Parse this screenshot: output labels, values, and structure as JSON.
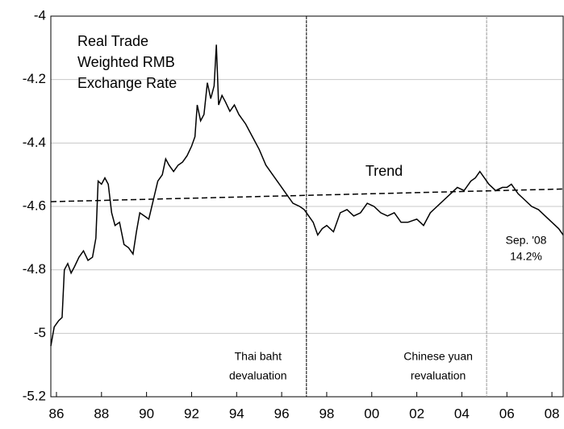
{
  "chart_data": {
    "type": "line",
    "title": [
      "Real Trade",
      "Weighted RMB",
      "Exchange Rate"
    ],
    "xlim": [
      1985.75,
      2008.5
    ],
    "ylim": [
      -5.2,
      -4.0
    ],
    "yticks": [
      -5.2,
      -5.0,
      -4.8,
      -4.6,
      -4.4,
      -4.2,
      -4.0
    ],
    "xticks": [
      {
        "value": 1986,
        "label": "86"
      },
      {
        "value": 1988,
        "label": "88"
      },
      {
        "value": 1990,
        "label": "90"
      },
      {
        "value": 1992,
        "label": "92"
      },
      {
        "value": 1994,
        "label": "94"
      },
      {
        "value": 1996,
        "label": "96"
      },
      {
        "value": 1998,
        "label": "98"
      },
      {
        "value": 2000,
        "label": "00"
      },
      {
        "value": 2002,
        "label": "02"
      },
      {
        "value": 2004,
        "label": "04"
      },
      {
        "value": 2006,
        "label": "06"
      },
      {
        "value": 2008,
        "label": "08"
      }
    ],
    "grid": true,
    "series": [
      {
        "color": "#000000",
        "x": [
          1985.75,
          1985.9,
          1986.1,
          1986.25,
          1986.35,
          1986.5,
          1986.65,
          1986.8,
          1987.0,
          1987.2,
          1987.4,
          1987.6,
          1987.75,
          1987.85,
          1988.0,
          1988.15,
          1988.3,
          1988.45,
          1988.6,
          1988.8,
          1989.0,
          1989.2,
          1989.4,
          1989.55,
          1989.7,
          1989.9,
          1990.1,
          1990.3,
          1990.5,
          1990.7,
          1990.85,
          1991.0,
          1991.2,
          1991.4,
          1991.6,
          1991.8,
          1992.0,
          1992.15,
          1992.25,
          1992.4,
          1992.55,
          1992.7,
          1992.85,
          1993.0,
          1993.1,
          1993.2,
          1993.35,
          1993.5,
          1993.7,
          1993.9,
          1994.1,
          1994.4,
          1994.7,
          1995.0,
          1995.3,
          1995.6,
          1995.9,
          1996.2,
          1996.5,
          1996.8,
          1997.0,
          1997.2,
          1997.4,
          1997.6,
          1997.8,
          1998.0,
          1998.3,
          1998.6,
          1998.9,
          1999.2,
          1999.5,
          1999.8,
          2000.1,
          2000.4,
          2000.7,
          2001.0,
          2001.3,
          2001.6,
          2002.0,
          2002.3,
          2002.6,
          2002.9,
          2003.2,
          2003.5,
          2003.8,
          2004.1,
          2004.4,
          2004.6,
          2004.8,
          2005.0,
          2005.2,
          2005.5,
          2005.8,
          2006.0,
          2006.2,
          2006.5,
          2006.8,
          2007.1,
          2007.4,
          2007.7,
          2008.0,
          2008.3,
          2008.5
        ],
        "values": [
          -5.04,
          -4.98,
          -4.96,
          -4.95,
          -4.8,
          -4.78,
          -4.81,
          -4.79,
          -4.76,
          -4.74,
          -4.77,
          -4.76,
          -4.7,
          -4.52,
          -4.53,
          -4.51,
          -4.53,
          -4.62,
          -4.66,
          -4.65,
          -4.72,
          -4.73,
          -4.75,
          -4.68,
          -4.62,
          -4.63,
          -4.64,
          -4.58,
          -4.52,
          -4.5,
          -4.45,
          -4.47,
          -4.49,
          -4.47,
          -4.46,
          -4.44,
          -4.41,
          -4.38,
          -4.28,
          -4.33,
          -4.31,
          -4.21,
          -4.26,
          -4.22,
          -4.09,
          -4.28,
          -4.25,
          -4.27,
          -4.3,
          -4.28,
          -4.31,
          -4.34,
          -4.38,
          -4.42,
          -4.47,
          -4.5,
          -4.53,
          -4.56,
          -4.59,
          -4.6,
          -4.61,
          -4.63,
          -4.65,
          -4.69,
          -4.67,
          -4.66,
          -4.68,
          -4.62,
          -4.61,
          -4.63,
          -4.62,
          -4.59,
          -4.6,
          -4.62,
          -4.63,
          -4.62,
          -4.65,
          -4.65,
          -4.64,
          -4.66,
          -4.62,
          -4.6,
          -4.58,
          -4.56,
          -4.54,
          -4.55,
          -4.52,
          -4.51,
          -4.49,
          -4.51,
          -4.53,
          -4.55,
          -4.54,
          -4.54,
          -4.53,
          -4.56,
          -4.58,
          -4.6,
          -4.61,
          -4.63,
          -4.65,
          -4.67,
          -4.69
        ]
      },
      {
        "name": "Trend",
        "color": "#000000",
        "dashed": true,
        "x": [
          1985.75,
          2008.5
        ],
        "values": [
          -4.585,
          -4.545
        ]
      }
    ],
    "events": [
      {
        "x": 1997.1,
        "label": [
          "Thai baht",
          "devaluation"
        ],
        "color": "#000000"
      },
      {
        "x": 2005.1,
        "label": [
          "Chinese yuan",
          "revaluation"
        ],
        "color": "#999999"
      }
    ],
    "end_note": [
      "Sep. '08",
      "14.2%"
    ]
  }
}
